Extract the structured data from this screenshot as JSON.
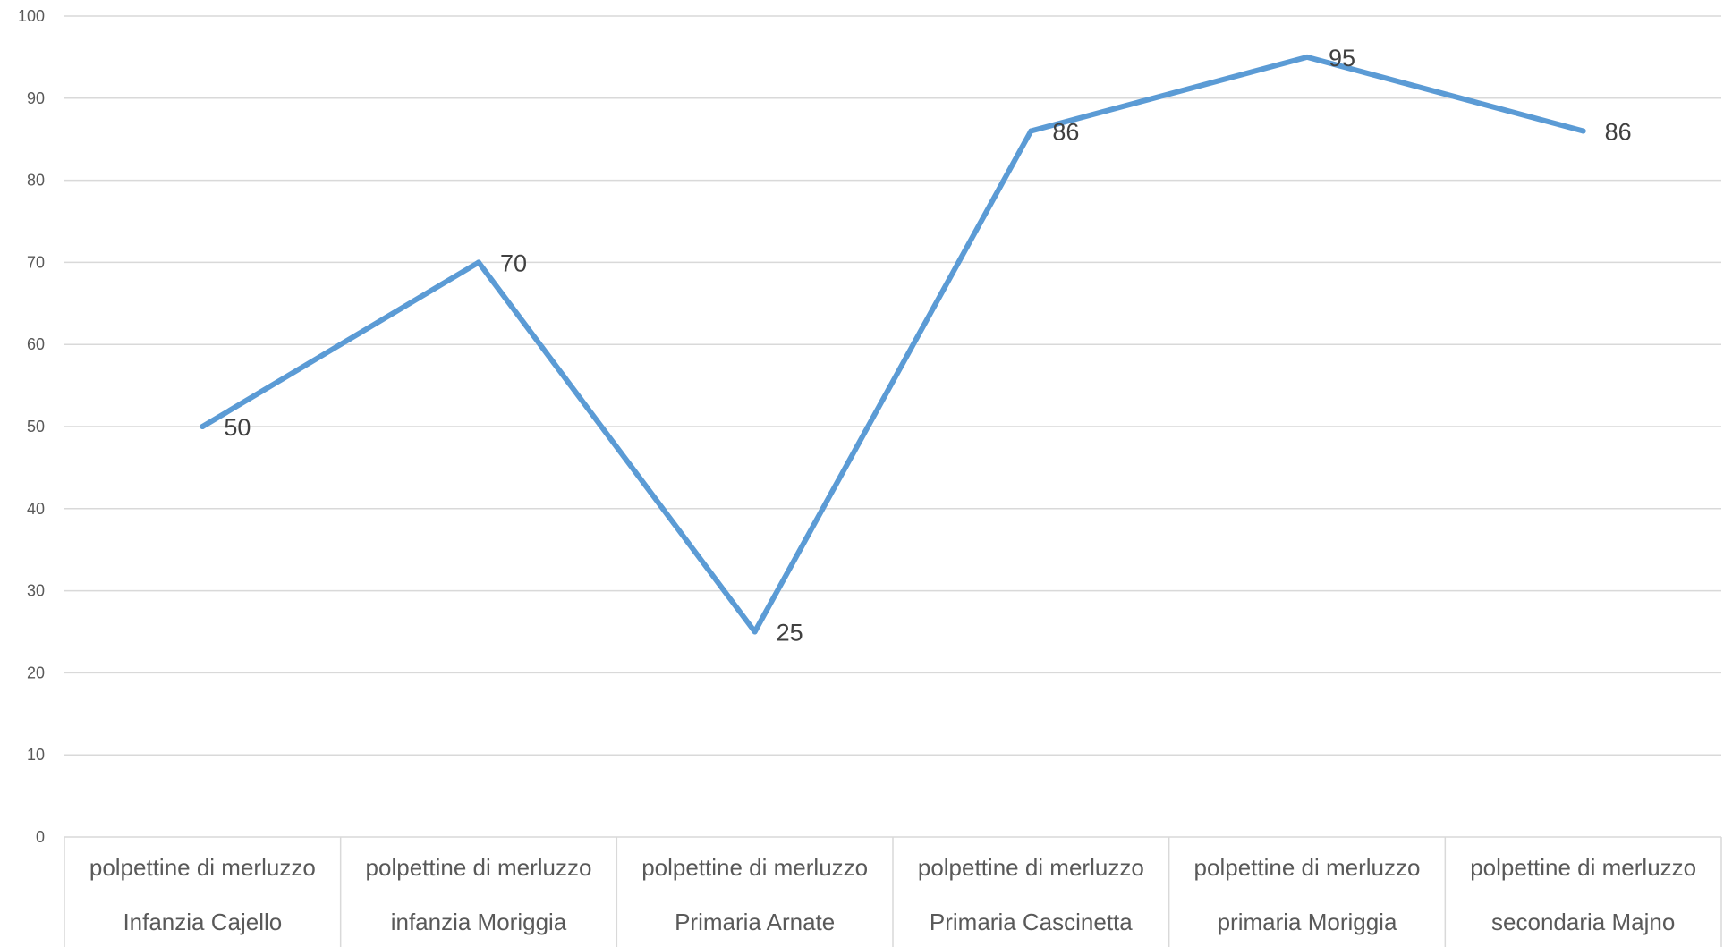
{
  "chart_data": {
    "type": "line",
    "title": "",
    "xlabel": "",
    "ylabel": "",
    "categories": [
      [
        "polpettine di merluzzo",
        "Infanzia Cajello"
      ],
      [
        "polpettine di merluzzo",
        "infanzia Moriggia"
      ],
      [
        "polpettine di merluzzo",
        "Primaria Arnate"
      ],
      [
        "polpettine di merluzzo",
        "Primaria Cascinetta"
      ],
      [
        "polpettine di merluzzo",
        "primaria Moriggia"
      ],
      [
        "polpettine di merluzzo",
        "secondaria Majno"
      ]
    ],
    "series": [
      {
        "values": [
          50,
          70,
          25,
          86,
          95,
          86
        ],
        "color": "#5B9BD5"
      }
    ],
    "data_labels": [
      "50",
      "70",
      "25",
      "86",
      "95",
      "86"
    ],
    "ylim": [
      0,
      100
    ],
    "yticks": [
      "0",
      "10",
      "20",
      "30",
      "40",
      "50",
      "60",
      "70",
      "80",
      "90",
      "100"
    ],
    "grid": true,
    "legend": "none",
    "colors": {
      "line": "#5B9BD5",
      "grid": "#D9D9D9",
      "text": "#595959",
      "data_label": "#404040"
    }
  }
}
